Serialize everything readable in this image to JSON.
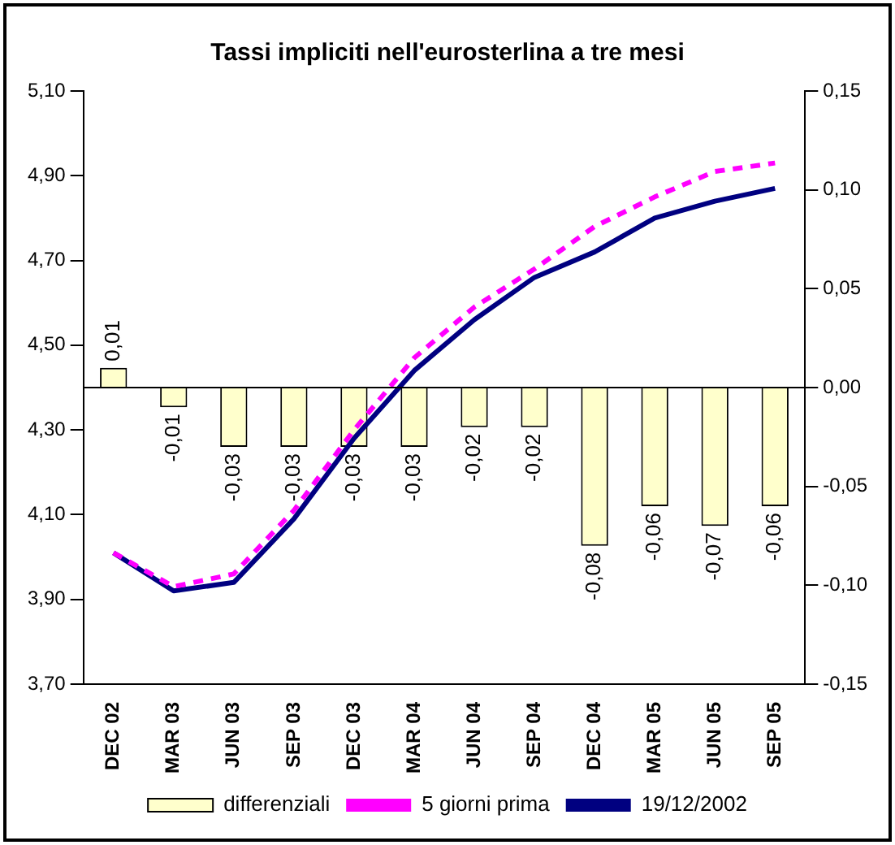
{
  "chart_data": {
    "type": "bar",
    "title": "Tassi impliciti nell'eurosterlina a tre mesi",
    "categories": [
      "DEC 02",
      "MAR 03",
      "JUN 03",
      "SEP 03",
      "DEC 03",
      "MAR 04",
      "JUN 04",
      "SEP 04",
      "DEC 04",
      "MAR 05",
      "JUN 05",
      "SEP 05"
    ],
    "series": [
      {
        "name": "differenziali",
        "axis": "y2",
        "color": "#ffffcc",
        "values": [
          0.01,
          -0.01,
          -0.03,
          -0.03,
          -0.03,
          -0.03,
          -0.02,
          -0.02,
          -0.08,
          -0.06,
          -0.07,
          -0.06
        ],
        "value_labels": [
          "0,01",
          "-0,01",
          "-0,03",
          "-0,03",
          "-0,03",
          "-0,03",
          "-0,02",
          "-0,02",
          "-0,08",
          "-0,06",
          "-0,07",
          "-0,06"
        ]
      },
      {
        "name": "5 giorni prima",
        "type": "line",
        "color": "#ff00ff",
        "line_style": "dashed",
        "values": [
          4.01,
          3.93,
          3.96,
          4.11,
          4.3,
          4.47,
          4.59,
          4.68,
          4.78,
          4.85,
          4.91,
          4.93
        ]
      },
      {
        "name": "19/12/2002",
        "type": "line",
        "color": "#000080",
        "line_style": "solid",
        "values": [
          4.01,
          3.92,
          3.94,
          4.09,
          4.28,
          4.44,
          4.56,
          4.66,
          4.72,
          4.8,
          4.84,
          4.87
        ]
      }
    ],
    "ylim": [
      3.7,
      5.1
    ],
    "yticks": [
      {
        "value": 3.7,
        "label": "3,70"
      },
      {
        "value": 3.9,
        "label": "3,90"
      },
      {
        "value": 4.1,
        "label": "4,10"
      },
      {
        "value": 4.3,
        "label": "4,30"
      },
      {
        "value": 4.5,
        "label": "4,50"
      },
      {
        "value": 4.7,
        "label": "4,70"
      },
      {
        "value": 4.9,
        "label": "4,90"
      },
      {
        "value": 5.1,
        "label": "5,10"
      }
    ],
    "y2lim": [
      -0.15,
      0.15
    ],
    "y2ticks": [
      {
        "value": -0.15,
        "label": "-0,15"
      },
      {
        "value": -0.1,
        "label": "-0,10"
      },
      {
        "value": -0.05,
        "label": "-0,05"
      },
      {
        "value": 0,
        "label": "0,00"
      },
      {
        "value": 0.05,
        "label": "0,05"
      },
      {
        "value": 0.1,
        "label": "0,10"
      },
      {
        "value": 0.15,
        "label": "0,15"
      }
    ],
    "ref_lines": [
      {
        "axis": "y2",
        "value": 0,
        "color": "#000000"
      }
    ],
    "grid": false,
    "legend": "bottom",
    "marker": "none"
  }
}
